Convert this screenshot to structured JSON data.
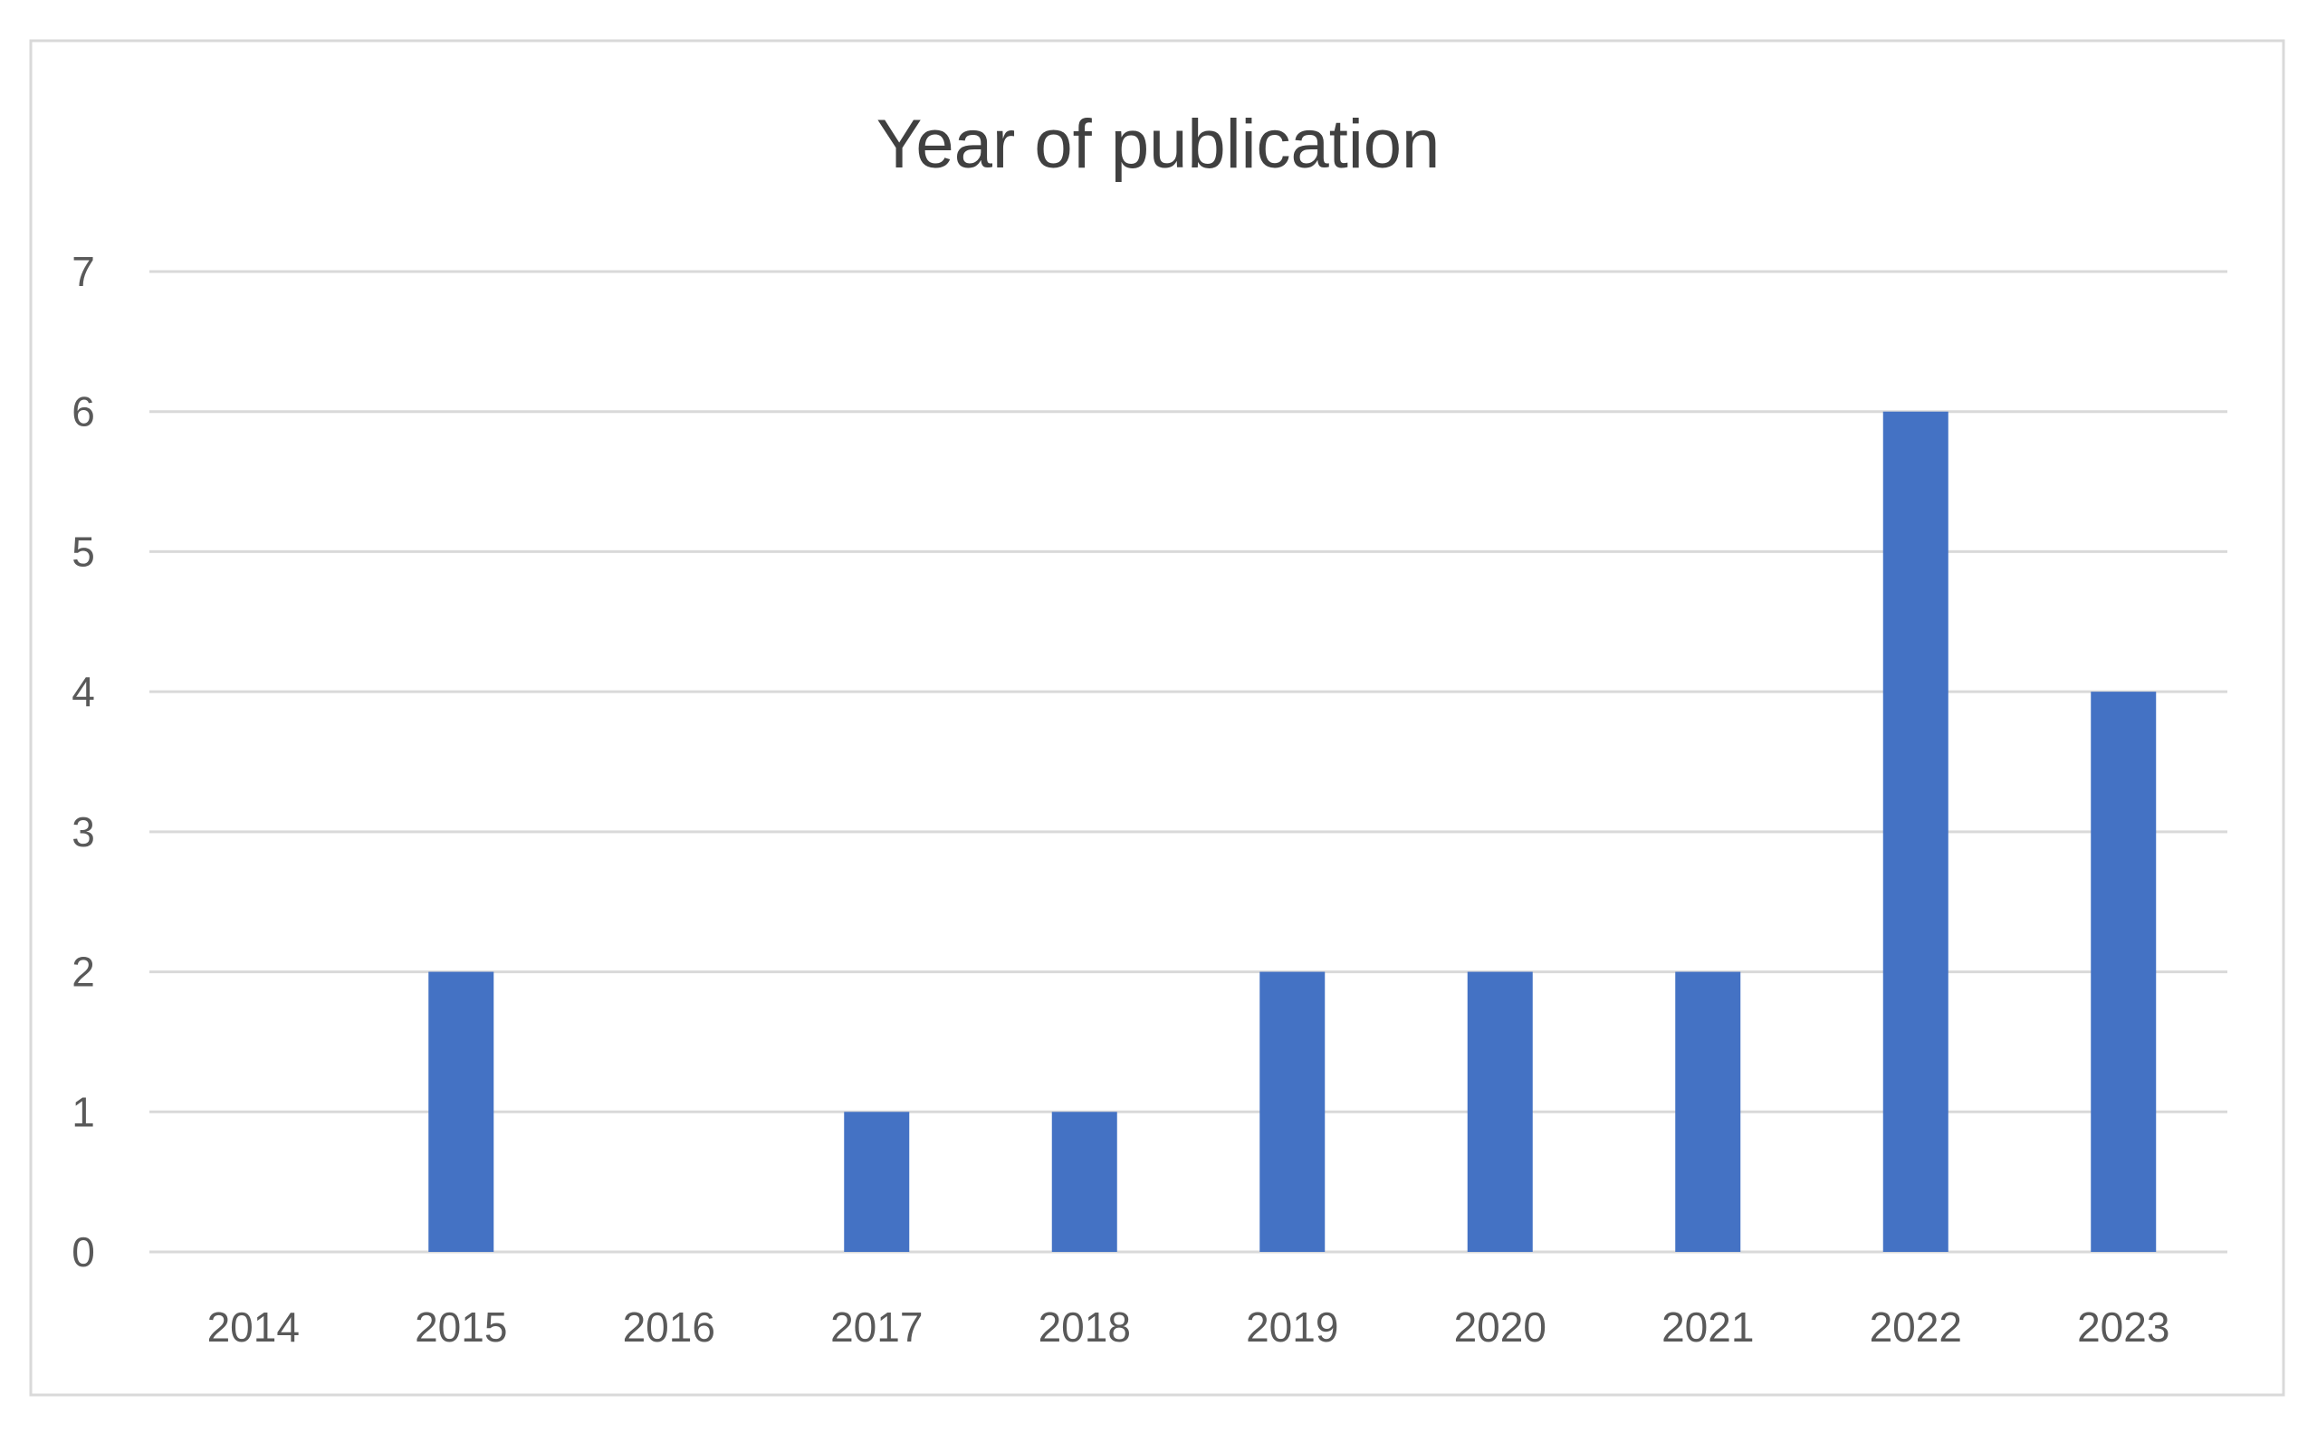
{
  "chart_data": {
    "type": "bar",
    "title": "Year of publication",
    "categories": [
      "2014",
      "2015",
      "2016",
      "2017",
      "2018",
      "2019",
      "2020",
      "2021",
      "2022",
      "2023"
    ],
    "values": [
      0,
      2,
      0,
      1,
      1,
      2,
      2,
      2,
      6,
      4
    ],
    "ylim": [
      0,
      7
    ],
    "yticks": [
      "0",
      "1",
      "2",
      "3",
      "4",
      "5",
      "6",
      "7"
    ],
    "grid": true,
    "colors": {
      "bar": "#4472C4",
      "grid": "#D9D9D9",
      "frame": "#D9D9D9",
      "text": "#595959"
    }
  }
}
